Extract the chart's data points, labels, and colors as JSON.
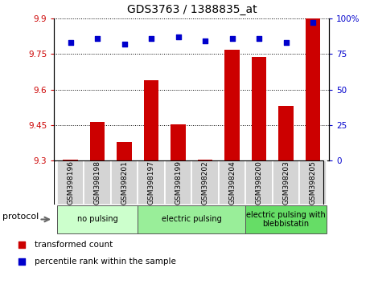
{
  "title": "GDS3763 / 1388835_at",
  "samples": [
    "GSM398196",
    "GSM398198",
    "GSM398201",
    "GSM398197",
    "GSM398199",
    "GSM398202",
    "GSM398204",
    "GSM398200",
    "GSM398203",
    "GSM398205"
  ],
  "transformed_counts": [
    9.305,
    9.462,
    9.378,
    9.638,
    9.451,
    9.305,
    9.769,
    9.737,
    9.529,
    9.905
  ],
  "percentile_ranks": [
    83,
    86,
    82,
    86,
    87,
    84,
    86,
    86,
    83,
    97
  ],
  "ylim_left": [
    9.3,
    9.9
  ],
  "ylim_right": [
    0,
    100
  ],
  "yticks_left": [
    9.3,
    9.45,
    9.6,
    9.75,
    9.9
  ],
  "ytick_labels_left": [
    "9.3",
    "9.45",
    "9.6",
    "9.75",
    "9.9"
  ],
  "yticks_right": [
    0,
    25,
    50,
    75,
    100
  ],
  "ytick_labels_right": [
    "0",
    "25",
    "50",
    "75",
    "100%"
  ],
  "bar_color": "#cc0000",
  "dot_color": "#0000cc",
  "groups": [
    {
      "label": "no pulsing",
      "start": 0,
      "end": 3,
      "color": "#ccffcc"
    },
    {
      "label": "electric pulsing",
      "start": 3,
      "end": 7,
      "color": "#99ee99"
    },
    {
      "label": "electric pulsing with\nblebbistatin",
      "start": 7,
      "end": 10,
      "color": "#66dd66"
    }
  ],
  "protocol_label": "protocol",
  "legend_bar_label": "transformed count",
  "legend_dot_label": "percentile rank within the sample",
  "title_fontsize": 10,
  "tick_fontsize": 7.5,
  "label_fontsize": 6.5,
  "group_fontsize": 7,
  "legend_fontsize": 7.5,
  "sample_box_color": "#d4d4d4",
  "bar_width": 0.55
}
